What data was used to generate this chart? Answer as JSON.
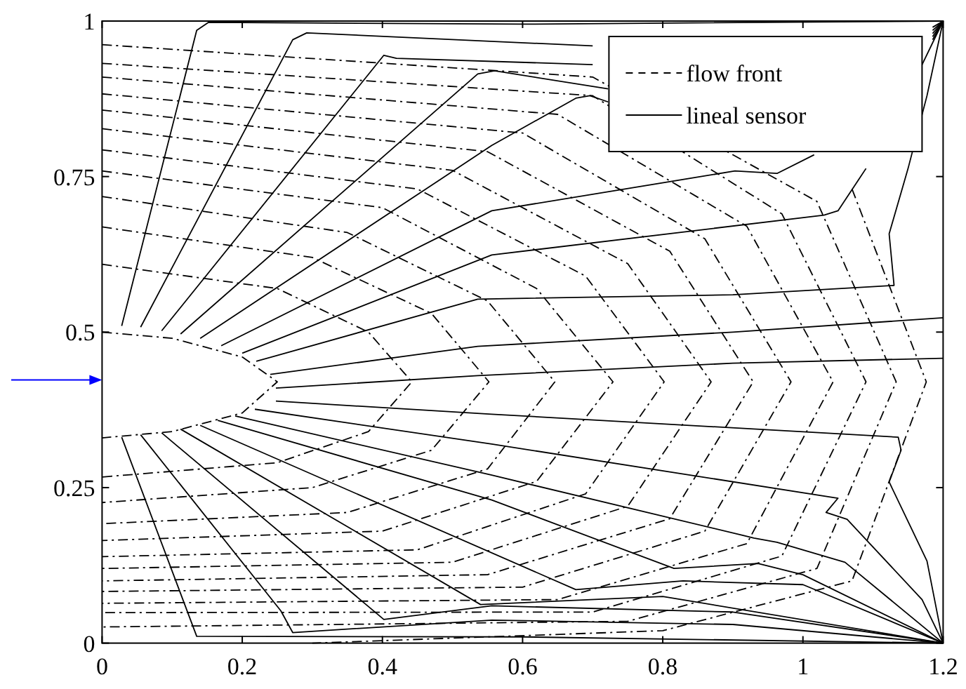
{
  "chart_data": {
    "type": "line",
    "xlim": [
      0,
      1.2
    ],
    "ylim": [
      0,
      1
    ],
    "xticks": [
      0,
      0.2,
      0.4,
      0.6,
      0.8,
      1,
      1.2
    ],
    "yticks": [
      0,
      0.25,
      0.5,
      0.75,
      1
    ],
    "grid": false,
    "legend": "top right",
    "series": [
      {
        "name": "flow front",
        "color": "#000000",
        "line_style": "dashed",
        "x": [
          0,
          0.1,
          0.2,
          0.25,
          0.2,
          0.1,
          0
        ],
        "values": [
          0.5,
          0.49,
          0.46,
          0.42,
          0.37,
          0.34,
          0.33
        ]
      },
      {
        "color": "#000000",
        "line_style": "dashed",
        "x": [
          0,
          0.25,
          0.38,
          0.442,
          0.38,
          0.25,
          0
        ],
        "values": [
          0.609,
          0.57,
          0.5,
          0.42,
          0.34,
          0.29,
          0.267
        ]
      },
      {
        "color": "#000000",
        "line_style": "dashed",
        "x": [
          0,
          0.3,
          0.47,
          0.552,
          0.47,
          0.3,
          0
        ],
        "values": [
          0.669,
          0.62,
          0.53,
          0.42,
          0.31,
          0.25,
          0.226
        ]
      },
      {
        "color": "#000000",
        "line_style": "dashed",
        "x": [
          0,
          0.35,
          0.55,
          0.646,
          0.55,
          0.35,
          0
        ],
        "values": [
          0.718,
          0.66,
          0.55,
          0.42,
          0.28,
          0.21,
          0.192
        ]
      },
      {
        "color": "#000000",
        "line_style": "dashed",
        "x": [
          0,
          0.4,
          0.62,
          0.729,
          0.62,
          0.4,
          0
        ],
        "values": [
          0.759,
          0.7,
          0.57,
          0.42,
          0.26,
          0.18,
          0.165
        ]
      },
      {
        "color": "#000000",
        "line_style": "dashed",
        "x": [
          0,
          0.45,
          0.69,
          0.802,
          0.69,
          0.45,
          0
        ],
        "values": [
          0.793,
          0.73,
          0.59,
          0.42,
          0.24,
          0.15,
          0.139
        ]
      },
      {
        "color": "#000000",
        "line_style": "dashed",
        "x": [
          0,
          0.5,
          0.75,
          0.869,
          0.75,
          0.5,
          0
        ],
        "values": [
          0.827,
          0.76,
          0.61,
          0.42,
          0.22,
          0.13,
          0.12
        ]
      },
      {
        "color": "#000000",
        "line_style": "dashed",
        "x": [
          0,
          0.55,
          0.81,
          0.929,
          0.81,
          0.55,
          0
        ],
        "values": [
          0.857,
          0.79,
          0.63,
          0.42,
          0.2,
          0.11,
          0.1
        ]
      },
      {
        "color": "#000000",
        "line_style": "dashed",
        "x": [
          0,
          0.6,
          0.86,
          0.983,
          0.86,
          0.6,
          0
        ],
        "values": [
          0.883,
          0.82,
          0.65,
          0.42,
          0.18,
          0.09,
          0.083
        ]
      },
      {
        "color": "#000000",
        "line_style": "dashed",
        "x": [
          0,
          0.65,
          0.92,
          1.043,
          0.92,
          0.65,
          0
        ],
        "values": [
          0.91,
          0.85,
          0.67,
          0.42,
          0.16,
          0.07,
          0.064
        ]
      },
      {
        "color": "#000000",
        "line_style": "dashed",
        "x": [
          0,
          0.7,
          0.97,
          1.09,
          0.97,
          0.7,
          0
        ],
        "values": [
          0.932,
          0.88,
          0.69,
          0.42,
          0.14,
          0.05,
          0.049
        ]
      },
      {
        "color": "#000000",
        "line_style": "dashed",
        "x": [
          0,
          0.7,
          1.02,
          1.133,
          1.02,
          0.75,
          0
        ],
        "values": [
          0.962,
          0.91,
          0.71,
          0.42,
          0.12,
          0.035,
          0.026
        ]
      },
      {
        "color": "#000000",
        "line_style": "dashed",
        "x": [
          1.07,
          1.176,
          1.07,
          0.8,
          0.3
        ],
        "values": [
          0.73,
          0.42,
          0.1,
          0.02,
          0
        ]
      },
      {
        "name": "lineal sensor",
        "color": "#000000",
        "line_style": "solid",
        "x": [
          0.028,
          0.135,
          0.152,
          0.6,
          1.2
        ],
        "values": [
          0.51,
          0.985,
          0.998,
          0.995,
          1
        ]
      },
      {
        "color": "#000000",
        "line_style": "solid",
        "x": [
          0.055,
          0.272,
          0.292,
          0.7,
          1,
          1.185,
          1.2
        ],
        "values": [
          0.508,
          0.97,
          0.981,
          0.96,
          null,
          0.99,
          1
        ]
      },
      {
        "color": "#000000",
        "line_style": "solid",
        "x": [
          0.085,
          0.402,
          0.42,
          0.7,
          1,
          1.185,
          1.2
        ],
        "values": [
          0.502,
          0.945,
          0.94,
          0.93,
          null,
          0.985,
          1
        ]
      },
      {
        "color": "#000000",
        "line_style": "solid",
        "x": [
          0.112,
          0.536,
          0.56,
          0.722,
          1,
          1.185,
          1.2
        ],
        "values": [
          0.497,
          0.915,
          0.92,
          0.891,
          null,
          0.98,
          1
        ]
      },
      {
        "color": "#000000",
        "line_style": "solid",
        "x": [
          0.14,
          0.556,
          0.676,
          0.696,
          0.722,
          1,
          1.185,
          1.2
        ],
        "values": [
          0.49,
          0.8,
          0.876,
          0.88,
          0.87,
          null,
          0.975,
          1
        ]
      },
      {
        "color": "#000000",
        "line_style": "solid",
        "x": [
          0.17,
          0.556,
          0.903,
          0.963,
          1.016,
          1.05,
          1.1,
          1.185,
          1.2
        ],
        "values": [
          0.478,
          0.695,
          0.759,
          0.755,
          0.785,
          null,
          null,
          0.97,
          1
        ]
      },
      {
        "color": "#000000",
        "line_style": "solid",
        "x": [
          0.2,
          0.556,
          1.03,
          1.05,
          1.09,
          1.137,
          1.17,
          1.2
        ],
        "values": [
          0.466,
          0.624,
          0.688,
          0.695,
          0.763,
          null,
          0.93,
          1
        ]
      },
      {
        "color": "#000000",
        "line_style": "solid",
        "x": [
          0.22,
          0.536,
          0.9,
          1.13,
          1.123,
          1.15,
          1.177,
          1.2
        ],
        "values": [
          0.453,
          0.553,
          0.56,
          0.575,
          0.658,
          0.763,
          0.88,
          1
        ]
      },
      {
        "color": "#000000",
        "line_style": "solid",
        "x": [
          0.24,
          0.536,
          0.9,
          1.2
        ],
        "values": [
          0.432,
          0.477,
          0.5,
          0.523
        ]
      },
      {
        "color": "#000000",
        "line_style": "solid",
        "x": [
          0.248,
          0.536,
          0.9,
          1.2
        ],
        "values": [
          0.41,
          0.43,
          0.45,
          0.458
        ]
      },
      {
        "color": "#000000",
        "line_style": "solid",
        "x": [
          0.248,
          0.556,
          1.136,
          1.14,
          1.123,
          1.177,
          1.2
        ],
        "values": [
          0.389,
          0.368,
          0.331,
          0.31,
          0.259,
          0.132,
          0
        ]
      },
      {
        "color": "#000000",
        "line_style": "solid",
        "x": [
          0.218,
          0.556,
          1.05,
          1.033,
          1.063,
          1.17,
          1.2
        ],
        "values": [
          0.376,
          0.32,
          0.233,
          0.21,
          0.199,
          0.07,
          0
        ]
      },
      {
        "color": "#000000",
        "line_style": "solid",
        "x": [
          0.19,
          0.556,
          0.93,
          0.963,
          1.06,
          1.2
        ],
        "values": [
          0.365,
          0.27,
          0.169,
          0.162,
          0.13,
          0
        ]
      },
      {
        "color": "#000000",
        "line_style": "solid",
        "x": [
          0.165,
          0.556,
          0.816,
          0.936,
          1,
          1.2
        ],
        "values": [
          0.358,
          0.23,
          0.12,
          0.128,
          0.11,
          0
        ]
      },
      {
        "color": "#000000",
        "line_style": "solid",
        "x": [
          0.14,
          0.676,
          0.829,
          1,
          1.2
        ],
        "values": [
          0.35,
          0.086,
          0.1,
          0.094,
          0
        ]
      },
      {
        "color": "#000000",
        "line_style": "solid",
        "x": [
          0.112,
          0.54,
          0.8,
          1.2
        ],
        "values": [
          0.344,
          0.062,
          0.075,
          0
        ]
      },
      {
        "color": "#000000",
        "line_style": "solid",
        "x": [
          0.085,
          0.402,
          0.556,
          0.9,
          1.2
        ],
        "values": [
          0.338,
          0.038,
          0.06,
          0.05,
          0
        ]
      },
      {
        "color": "#000000",
        "line_style": "solid",
        "x": [
          0.055,
          0.255,
          0.272,
          0.556,
          0.9,
          1.2
        ],
        "values": [
          0.335,
          0.052,
          0.017,
          0.037,
          0.03,
          0
        ]
      },
      {
        "color": "#000000",
        "line_style": "solid",
        "x": [
          0.028,
          0.135,
          0.6,
          1.2
        ],
        "values": [
          0.331,
          0.011,
          0.01,
          0
        ]
      }
    ]
  }
}
